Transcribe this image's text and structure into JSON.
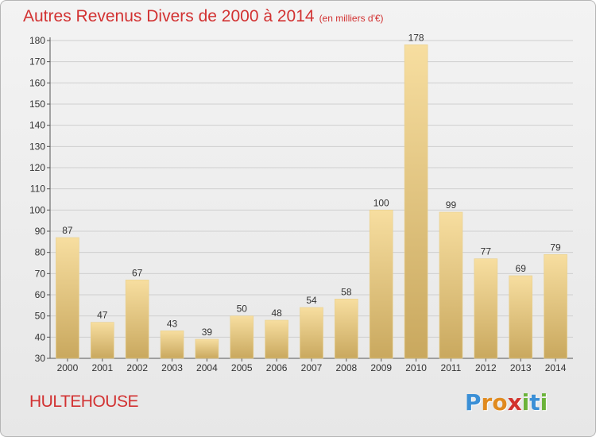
{
  "title": "Autres Revenus Divers de 2000 à 2014",
  "title_unit": "(en milliers d'€)",
  "city": "HULTEHOUSE",
  "logo": {
    "letters": [
      "P",
      "r",
      "o",
      "x",
      "i",
      "t",
      "i"
    ],
    "colors": [
      "#3a8fd6",
      "#e08a1e",
      "#e08a1e",
      "#d2322c",
      "#6bb33a",
      "#3a8fd6",
      "#6bb33a"
    ]
  },
  "colors": {
    "bar_top": "#f7dea0",
    "bar_bottom": "#c9a85e",
    "title": "#d23232",
    "grid": "#cfcfcf"
  },
  "chart_data": {
    "type": "bar",
    "categories": [
      "2000",
      "2001",
      "2002",
      "2003",
      "2004",
      "2005",
      "2006",
      "2007",
      "2008",
      "2009",
      "2010",
      "2011",
      "2012",
      "2013",
      "2014"
    ],
    "values": [
      87,
      47,
      67,
      43,
      39,
      50,
      48,
      54,
      58,
      100,
      178,
      99,
      77,
      69,
      79
    ],
    "ylim": [
      30,
      180
    ],
    "yticks": [
      30,
      40,
      50,
      60,
      70,
      80,
      90,
      100,
      110,
      120,
      130,
      140,
      150,
      160,
      170,
      180
    ],
    "grid": true,
    "data_labels": true
  }
}
